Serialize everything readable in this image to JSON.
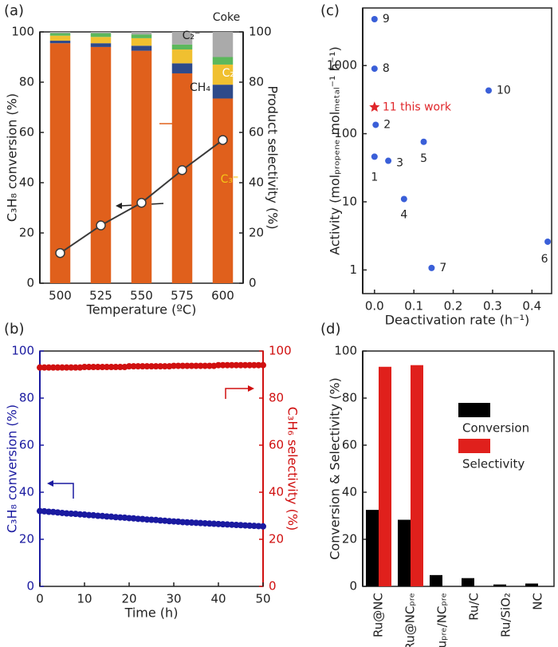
{
  "chart_data": [
    {
      "type": "bar",
      "panel_label": "(a)",
      "stacked": true,
      "categories": [
        "500",
        "525",
        "550",
        "575",
        "600"
      ],
      "x_label": "Temperature (ºC)",
      "y_label": "C₃H₈ conversion (%)",
      "y2_label": "Product selectivity (%)",
      "ylim": [
        0,
        100
      ],
      "yticks": [
        0,
        20,
        40,
        60,
        80,
        100
      ],
      "y2lim": [
        0,
        100
      ],
      "y2ticks": [
        0,
        20,
        40,
        60,
        80,
        100
      ],
      "series": [
        {
          "name": "C₃⁼",
          "color": "#e0601c",
          "axis": "y2",
          "values": [
            95.5,
            94,
            92.5,
            83.5,
            73.5
          ]
        },
        {
          "name": "CH₄",
          "color": "#2e4a8a",
          "axis": "y2",
          "values": [
            1,
            1.5,
            2,
            4,
            5.5
          ]
        },
        {
          "name": "C₂⁼",
          "color": "#f0c030",
          "axis": "y2",
          "values": [
            2,
            2.5,
            3,
            5.5,
            8
          ]
        },
        {
          "name": "C₂⁻",
          "color": "#5cb85c",
          "axis": "y2",
          "values": [
            1,
            1.5,
            1.5,
            2,
            3
          ]
        },
        {
          "name": "Coke",
          "color": "#aaaaaa",
          "axis": "y2",
          "values": [
            0.5,
            0.5,
            1,
            5,
            10
          ]
        }
      ],
      "line": {
        "color": "#3a3a3a",
        "values": [
          12,
          23,
          32,
          45,
          57
        ]
      }
    },
    {
      "type": "scatter",
      "panel_label": "(b)",
      "x_label": "Time (h)",
      "y_label": "C₃H₈ conversion (%)",
      "y2_label": "C₃H₆ selectivity  (%)",
      "y_color": "#1a1aa0",
      "y2_color": "#d01010",
      "xlim": [
        0,
        50
      ],
      "xticks": [
        0,
        10,
        20,
        30,
        40,
        50
      ],
      "ylim": [
        0,
        100
      ],
      "yticks": [
        0,
        20,
        40,
        60,
        80,
        100
      ],
      "y2lim": [
        0,
        100
      ],
      "y2ticks": [
        0,
        20,
        40,
        60,
        80,
        100
      ],
      "x": [
        0,
        1,
        2,
        3,
        4,
        5,
        6,
        7,
        8,
        9,
        10,
        11,
        12,
        13,
        14,
        15,
        16,
        17,
        18,
        19,
        20,
        21,
        22,
        23,
        24,
        25,
        26,
        27,
        28,
        29,
        30,
        31,
        32,
        33,
        34,
        35,
        36,
        37,
        38,
        39,
        40,
        41,
        42,
        43,
        44,
        45,
        46,
        47,
        48,
        49,
        50
      ],
      "series": [
        {
          "color": "#1a1aa0",
          "values": [
            32.0,
            31.9,
            31.7,
            31.6,
            31.4,
            31.2,
            31.0,
            30.9,
            30.8,
            30.6,
            30.5,
            30.3,
            30.2,
            30.0,
            29.9,
            29.7,
            29.6,
            29.4,
            29.3,
            29.2,
            29.0,
            28.9,
            28.7,
            28.6,
            28.4,
            28.3,
            28.2,
            28.0,
            27.9,
            27.7,
            27.6,
            27.5,
            27.3,
            27.2,
            27.1,
            27.0,
            26.9,
            26.8,
            26.7,
            26.6,
            26.5,
            26.4,
            26.3,
            26.2,
            26.1,
            26.0,
            25.9,
            25.8,
            25.7,
            25.6,
            25.5
          ]
        },
        {
          "color": "#d01010",
          "axis": "y2",
          "values": [
            93.0,
            93.0,
            93.0,
            93.0,
            93.0,
            93.0,
            93.0,
            93.0,
            93.0,
            93.0,
            93.2,
            93.2,
            93.2,
            93.2,
            93.2,
            93.2,
            93.2,
            93.2,
            93.2,
            93.2,
            93.5,
            93.5,
            93.5,
            93.5,
            93.5,
            93.5,
            93.5,
            93.5,
            93.5,
            93.5,
            93.7,
            93.7,
            93.7,
            93.7,
            93.7,
            93.7,
            93.7,
            93.7,
            93.7,
            93.7,
            94.0,
            94.0,
            94.0,
            94.0,
            94.0,
            94.0,
            94.0,
            94.0,
            94.0,
            94.0,
            94.0
          ]
        }
      ]
    },
    {
      "type": "scatter",
      "panel_label": "(c)",
      "log_y": true,
      "x_label": "Deactivation rate (h⁻¹)",
      "y_label": "Activity (molₚᵣₒₚₑₙₑ molₘₑₜₐₗ⁻¹ h⁻¹)",
      "xlim": [
        -0.03,
        0.45
      ],
      "xticks": [
        {
          "value": 0,
          "label": "0.0"
        },
        {
          "value": 0.1,
          "label": "0.1"
        },
        {
          "value": 0.2,
          "label": "0.2"
        },
        {
          "value": 0.3,
          "label": "0.3"
        },
        {
          "value": 0.4,
          "label": "0.4"
        }
      ],
      "ylim": [
        0.45,
        7000
      ],
      "yticks": [
        1,
        10,
        100,
        1000
      ],
      "x": [
        0,
        0,
        0,
        0.003,
        0,
        0.035,
        0.125,
        0.075,
        0.29,
        0.145,
        0.44
      ],
      "values": [
        4800,
        900,
        245,
        135,
        46,
        40,
        76,
        11,
        430,
        1.07,
        2.6
      ],
      "labels": [
        "9",
        "8",
        "11 this work",
        "2",
        "1",
        "3",
        "5",
        "4",
        "10",
        "7",
        "6"
      ],
      "markers": [
        "circle",
        "circle",
        "star",
        "circle",
        "circle",
        "circle",
        "circle",
        "circle",
        "circle",
        "circle",
        "circle"
      ],
      "colors": [
        "#3a5fd8",
        "#3a5fd8",
        "#e0262a",
        "#3a5fd8",
        "#3a5fd8",
        "#3a5fd8",
        "#3a5fd8",
        "#3a5fd8",
        "#3a5fd8",
        "#3a5fd8",
        "#3a5fd8"
      ]
    },
    {
      "type": "bar",
      "panel_label": "(d)",
      "x_label_rotation": 90,
      "categories": [
        "Ru@NC",
        "Ru@NCₚᵣₑ",
        "Ruₚᵣₑ/NCₚᵣₑ",
        "Ru/C",
        "Ru/SiO₂",
        "NC"
      ],
      "y_label": "Conversion & Selectivity (%)",
      "ylim": [
        0,
        100
      ],
      "yticks": [
        0,
        20,
        40,
        60,
        80,
        100
      ],
      "legend": "center-right",
      "series": [
        {
          "name": "Conversion",
          "color": "#000000",
          "values": [
            32.5,
            28.3,
            4.8,
            3.5,
            0.8,
            1.2
          ]
        },
        {
          "name": "Selectivity",
          "color": "#e0201c",
          "values": [
            93.3,
            94,
            null,
            null,
            null,
            null
          ]
        }
      ]
    }
  ]
}
